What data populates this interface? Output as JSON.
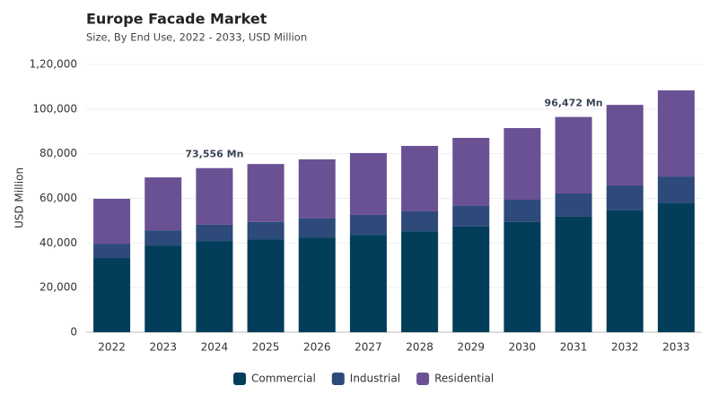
{
  "chart_data": {
    "type": "stacked-bar",
    "title": "Europe Facade Market",
    "subtitle": "Size, By End Use, 2022 - 2033, USD Million",
    "y_label": "USD Million",
    "categories": [
      "2022",
      "2023",
      "2024",
      "2025",
      "2026",
      "2027",
      "2028",
      "2029",
      "2030",
      "2031",
      "2032",
      "2033"
    ],
    "series": [
      {
        "name": "Commercial",
        "color": "#023e5a",
        "values": [
          33300,
          38900,
          40900,
          41700,
          42500,
          43700,
          45300,
          47400,
          49400,
          51800,
          54600,
          57800
        ]
      },
      {
        "name": "Industrial",
        "color": "#2d4a7a",
        "values": [
          6400,
          6800,
          7300,
          7700,
          8500,
          8900,
          8900,
          9200,
          10000,
          10400,
          11200,
          12000
        ]
      },
      {
        "name": "Residential",
        "color": "#6a5193",
        "values": [
          20100,
          23700,
          25356,
          26000,
          26500,
          27700,
          29300,
          30500,
          32100,
          34272,
          36100,
          38600
        ]
      }
    ],
    "annotations": [
      {
        "category": "2024",
        "value": 73556,
        "label": "73,556 Mn"
      },
      {
        "category": "2031",
        "value": 96472,
        "label": "96,472 Mn"
      }
    ],
    "ylim": [
      0,
      120000
    ],
    "yticks": [
      0,
      {
        "value": 20000,
        "label": "20,000"
      },
      {
        "value": 40000,
        "label": "40,000"
      },
      {
        "value": 60000,
        "label": "60,000"
      },
      {
        "value": 80000,
        "label": "80,000"
      },
      {
        "value": 100000,
        "label": "100,000"
      },
      {
        "value": 120000,
        "label": "1,20,000"
      }
    ],
    "grid": true,
    "legend": "bottom"
  }
}
